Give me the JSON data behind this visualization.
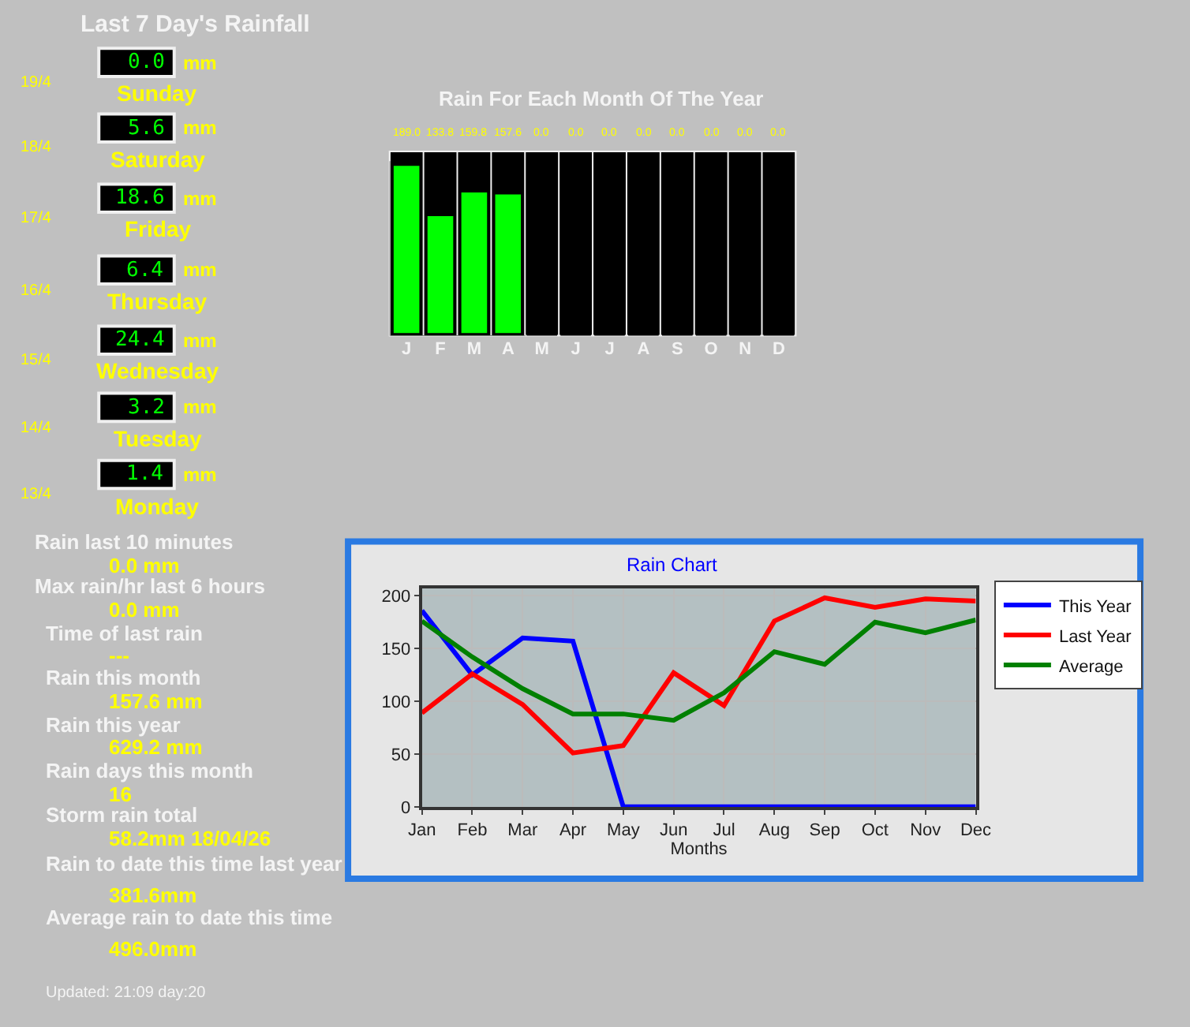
{
  "chart_data": [
    {
      "type": "other",
      "title": "Last 7 Day's Rainfall",
      "annotations": [
        "19/4",
        "0.0",
        "mm",
        "Sunday",
        "18/4",
        "5.6",
        "mm",
        "Saturday",
        "17/4",
        "18.6",
        "mm",
        "Friday",
        "16/4",
        "6.4",
        "mm",
        "Thursday",
        "15/4",
        "24.4",
        "mm",
        "Wednesday",
        "14/4",
        "3.2",
        "mm",
        "Tuesday",
        "13/4",
        "1.4",
        "mm",
        "Monday"
      ]
    },
    {
      "type": "bar",
      "title": "Rain For Each Month Of The Year",
      "categories": [
        "J",
        "F",
        "M",
        "A",
        "M",
        "J",
        "J",
        "A",
        "S",
        "O",
        "N",
        "D"
      ],
      "values": [
        189.0,
        133.8,
        159.8,
        157.6,
        0.0,
        0.0,
        0.0,
        0.0,
        0.0,
        0.0,
        0.0,
        0.0
      ],
      "value_labels": [
        "189.0",
        "133.8",
        "159.8",
        "157.6",
        "0.0",
        "0.0",
        "0.0",
        "0.0",
        "0.0",
        "0.0",
        "0.0",
        "0.0"
      ],
      "color": "#00ff00"
    },
    {
      "type": "other",
      "annotations": [
        "Rain last 10 minutes",
        "0.0 mm",
        "Max rain/hr last 6 hours",
        "0.0 mm",
        "Time of last rain",
        "---",
        "Rain this month",
        "157.6 mm",
        "Rain this year",
        "629.2 mm",
        "Rain days this month",
        "16",
        "Storm rain total",
        "58.2mm 18/04/26",
        "Rain to date this time last year",
        "381.6mm",
        "Average rain to date this time",
        "496.0mm",
        "Updated: 21:09 day:20"
      ]
    },
    {
      "type": "line",
      "title": "Rain Chart",
      "xlabel": "Months",
      "categories": [
        "Jan",
        "Feb",
        "Mar",
        "Apr",
        "May",
        "Jun",
        "Jul",
        "Aug",
        "Sep",
        "Oct",
        "Nov",
        "Dec"
      ],
      "ylim": [
        0,
        207
      ],
      "yticks": [
        0,
        50,
        100,
        150,
        200
      ],
      "grid": true,
      "legend": "right",
      "marker": "none",
      "line_style": "solid",
      "series": [
        {
          "name": "This Year",
          "color": "#0000ff",
          "values": [
            186,
            125,
            160,
            157,
            0,
            0,
            0,
            0,
            0,
            0,
            0,
            0
          ]
        },
        {
          "name": "Last Year",
          "color": "#ff0000",
          "values": [
            89,
            126,
            97,
            51,
            58,
            127,
            96,
            176,
            198,
            189,
            197,
            195
          ]
        },
        {
          "name": "Average",
          "color": "#008000",
          "values": [
            176,
            142,
            112,
            88,
            88,
            82,
            108,
            147,
            135,
            175,
            165,
            177
          ]
        }
      ]
    }
  ]
}
